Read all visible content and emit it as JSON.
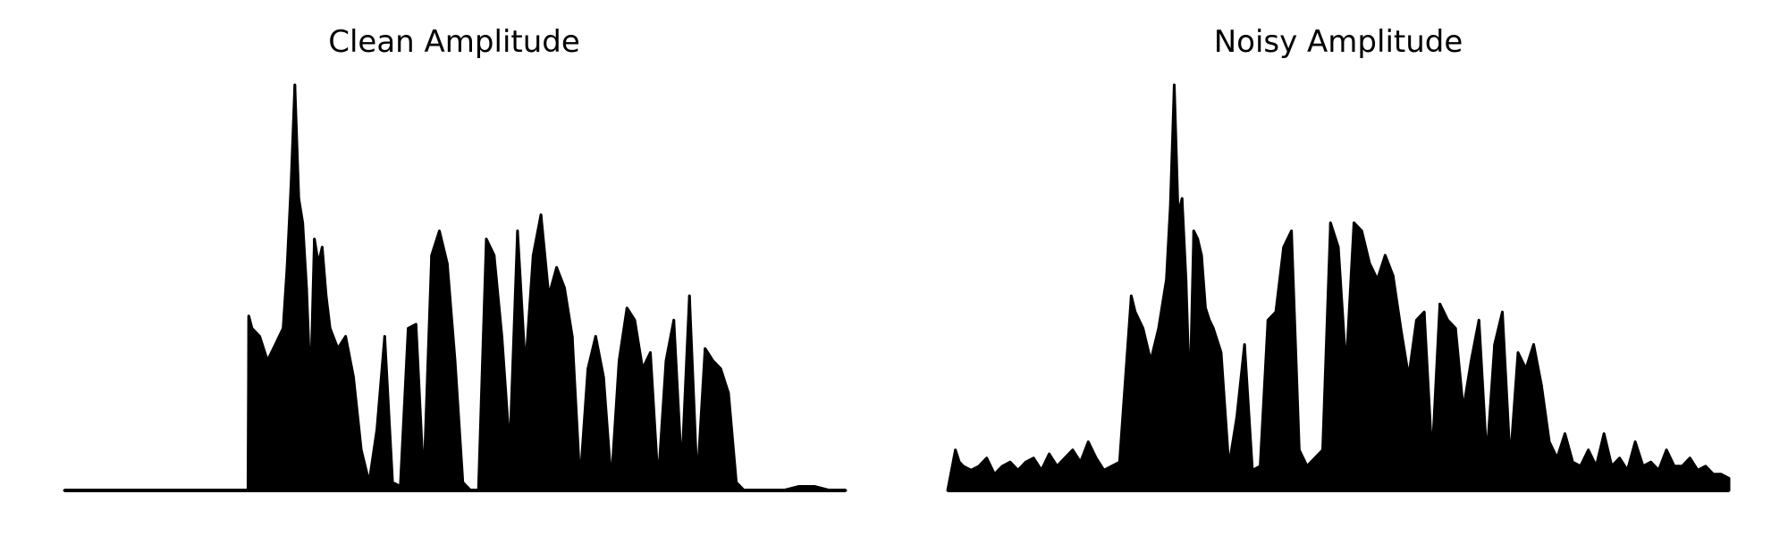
{
  "chart_data": [
    {
      "type": "area",
      "title": "Clean Amplitude",
      "xlabel": "",
      "ylabel": "",
      "axes_visible": false,
      "grid": false,
      "color": "#000000",
      "xlim": [
        0,
        1
      ],
      "ylim": [
        0,
        1
      ],
      "x": [
        0.0,
        0.02,
        0.04,
        0.06,
        0.08,
        0.1,
        0.12,
        0.14,
        0.16,
        0.18,
        0.2,
        0.22,
        0.235,
        0.236,
        0.24,
        0.25,
        0.26,
        0.27,
        0.28,
        0.285,
        0.29,
        0.295,
        0.3,
        0.305,
        0.31,
        0.315,
        0.32,
        0.325,
        0.33,
        0.335,
        0.34,
        0.35,
        0.36,
        0.37,
        0.38,
        0.39,
        0.4,
        0.41,
        0.42,
        0.43,
        0.44,
        0.45,
        0.46,
        0.47,
        0.48,
        0.49,
        0.5,
        0.51,
        0.52,
        0.53,
        0.54,
        0.55,
        0.56,
        0.57,
        0.58,
        0.59,
        0.6,
        0.61,
        0.62,
        0.63,
        0.64,
        0.65,
        0.66,
        0.67,
        0.68,
        0.69,
        0.7,
        0.71,
        0.72,
        0.73,
        0.74,
        0.75,
        0.76,
        0.77,
        0.78,
        0.79,
        0.8,
        0.81,
        0.82,
        0.83,
        0.84,
        0.85,
        0.86,
        0.87,
        0.88,
        0.9,
        0.92,
        0.94,
        0.96,
        0.98,
        1.0
      ],
      "y": [
        0.0,
        0.0,
        0.0,
        0.0,
        0.0,
        0.0,
        0.0,
        0.0,
        0.0,
        0.0,
        0.0,
        0.0,
        0.0,
        0.43,
        0.4,
        0.38,
        0.32,
        0.36,
        0.4,
        0.55,
        0.75,
        1.0,
        0.72,
        0.66,
        0.5,
        0.25,
        0.62,
        0.56,
        0.6,
        0.48,
        0.4,
        0.35,
        0.38,
        0.28,
        0.1,
        0.02,
        0.15,
        0.38,
        0.02,
        0.01,
        0.4,
        0.41,
        0.02,
        0.58,
        0.64,
        0.56,
        0.32,
        0.02,
        0.0,
        0.0,
        0.62,
        0.58,
        0.38,
        0.1,
        0.64,
        0.3,
        0.58,
        0.68,
        0.48,
        0.55,
        0.5,
        0.38,
        0.02,
        0.3,
        0.38,
        0.28,
        0.02,
        0.32,
        0.45,
        0.42,
        0.3,
        0.34,
        0.02,
        0.32,
        0.42,
        0.05,
        0.48,
        0.02,
        0.35,
        0.32,
        0.3,
        0.24,
        0.02,
        0.0,
        0.0,
        0.0,
        0.0,
        0.01,
        0.01,
        0.0,
        0.0
      ]
    },
    {
      "type": "area",
      "title": "Noisy Amplitude",
      "xlabel": "",
      "ylabel": "",
      "axes_visible": false,
      "grid": false,
      "color": "#000000",
      "xlim": [
        0,
        1
      ],
      "ylim": [
        0,
        1
      ],
      "x": [
        0.0,
        0.01,
        0.015,
        0.02,
        0.03,
        0.04,
        0.05,
        0.06,
        0.07,
        0.08,
        0.09,
        0.1,
        0.11,
        0.12,
        0.13,
        0.14,
        0.15,
        0.16,
        0.17,
        0.18,
        0.19,
        0.2,
        0.21,
        0.22,
        0.235,
        0.24,
        0.25,
        0.26,
        0.27,
        0.28,
        0.285,
        0.29,
        0.295,
        0.3,
        0.305,
        0.31,
        0.315,
        0.32,
        0.325,
        0.33,
        0.335,
        0.34,
        0.35,
        0.36,
        0.37,
        0.38,
        0.39,
        0.4,
        0.41,
        0.42,
        0.43,
        0.44,
        0.45,
        0.46,
        0.47,
        0.48,
        0.49,
        0.5,
        0.51,
        0.52,
        0.53,
        0.54,
        0.55,
        0.56,
        0.57,
        0.58,
        0.59,
        0.6,
        0.61,
        0.62,
        0.63,
        0.64,
        0.65,
        0.66,
        0.67,
        0.68,
        0.69,
        0.7,
        0.71,
        0.72,
        0.73,
        0.74,
        0.75,
        0.76,
        0.77,
        0.78,
        0.79,
        0.8,
        0.81,
        0.82,
        0.83,
        0.84,
        0.85,
        0.86,
        0.87,
        0.88,
        0.89,
        0.9,
        0.91,
        0.92,
        0.93,
        0.94,
        0.95,
        0.96,
        0.97,
        0.98,
        0.99,
        1.0
      ],
      "y": [
        0.0,
        0.1,
        0.07,
        0.06,
        0.05,
        0.06,
        0.08,
        0.04,
        0.06,
        0.07,
        0.05,
        0.07,
        0.08,
        0.05,
        0.09,
        0.06,
        0.08,
        0.1,
        0.07,
        0.12,
        0.08,
        0.05,
        0.06,
        0.07,
        0.48,
        0.44,
        0.4,
        0.32,
        0.4,
        0.52,
        0.7,
        1.0,
        0.68,
        0.72,
        0.52,
        0.22,
        0.64,
        0.62,
        0.58,
        0.45,
        0.42,
        0.4,
        0.34,
        0.06,
        0.18,
        0.36,
        0.05,
        0.06,
        0.42,
        0.44,
        0.6,
        0.64,
        0.1,
        0.06,
        0.08,
        0.1,
        0.66,
        0.6,
        0.3,
        0.66,
        0.64,
        0.56,
        0.52,
        0.58,
        0.53,
        0.4,
        0.28,
        0.42,
        0.44,
        0.08,
        0.46,
        0.42,
        0.4,
        0.2,
        0.32,
        0.42,
        0.08,
        0.36,
        0.44,
        0.07,
        0.34,
        0.3,
        0.36,
        0.26,
        0.12,
        0.08,
        0.14,
        0.07,
        0.06,
        0.1,
        0.06,
        0.14,
        0.06,
        0.08,
        0.05,
        0.12,
        0.06,
        0.07,
        0.05,
        0.1,
        0.06,
        0.06,
        0.08,
        0.05,
        0.06,
        0.04,
        0.04,
        0.03
      ]
    }
  ]
}
